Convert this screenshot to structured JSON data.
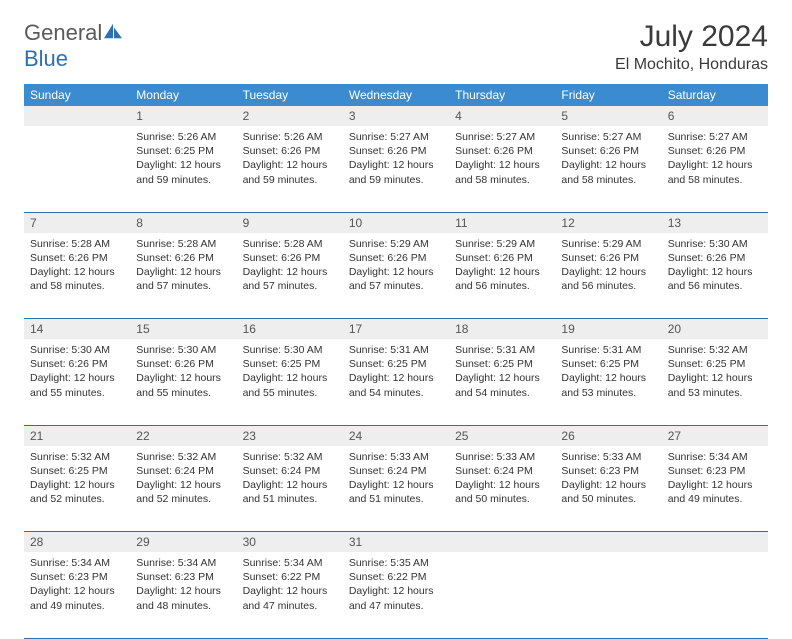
{
  "brand": {
    "part1": "General",
    "part2": "Blue"
  },
  "title": "July 2024",
  "location": "El Mochito, Honduras",
  "colors": {
    "header_bg": "#3b8bd0",
    "header_fg": "#ffffff",
    "daynum_bg": "#eeeeee",
    "rule": "#2f6fb0",
    "text": "#333333"
  },
  "weekdays": [
    "Sunday",
    "Monday",
    "Tuesday",
    "Wednesday",
    "Thursday",
    "Friday",
    "Saturday"
  ],
  "weeks": [
    [
      null,
      {
        "n": "1",
        "sr": "5:26 AM",
        "ss": "6:25 PM",
        "dl": "12 hours and 59 minutes."
      },
      {
        "n": "2",
        "sr": "5:26 AM",
        "ss": "6:26 PM",
        "dl": "12 hours and 59 minutes."
      },
      {
        "n": "3",
        "sr": "5:27 AM",
        "ss": "6:26 PM",
        "dl": "12 hours and 59 minutes."
      },
      {
        "n": "4",
        "sr": "5:27 AM",
        "ss": "6:26 PM",
        "dl": "12 hours and 58 minutes."
      },
      {
        "n": "5",
        "sr": "5:27 AM",
        "ss": "6:26 PM",
        "dl": "12 hours and 58 minutes."
      },
      {
        "n": "6",
        "sr": "5:27 AM",
        "ss": "6:26 PM",
        "dl": "12 hours and 58 minutes."
      }
    ],
    [
      {
        "n": "7",
        "sr": "5:28 AM",
        "ss": "6:26 PM",
        "dl": "12 hours and 58 minutes."
      },
      {
        "n": "8",
        "sr": "5:28 AM",
        "ss": "6:26 PM",
        "dl": "12 hours and 57 minutes."
      },
      {
        "n": "9",
        "sr": "5:28 AM",
        "ss": "6:26 PM",
        "dl": "12 hours and 57 minutes."
      },
      {
        "n": "10",
        "sr": "5:29 AM",
        "ss": "6:26 PM",
        "dl": "12 hours and 57 minutes."
      },
      {
        "n": "11",
        "sr": "5:29 AM",
        "ss": "6:26 PM",
        "dl": "12 hours and 56 minutes."
      },
      {
        "n": "12",
        "sr": "5:29 AM",
        "ss": "6:26 PM",
        "dl": "12 hours and 56 minutes."
      },
      {
        "n": "13",
        "sr": "5:30 AM",
        "ss": "6:26 PM",
        "dl": "12 hours and 56 minutes."
      }
    ],
    [
      {
        "n": "14",
        "sr": "5:30 AM",
        "ss": "6:26 PM",
        "dl": "12 hours and 55 minutes."
      },
      {
        "n": "15",
        "sr": "5:30 AM",
        "ss": "6:26 PM",
        "dl": "12 hours and 55 minutes."
      },
      {
        "n": "16",
        "sr": "5:30 AM",
        "ss": "6:25 PM",
        "dl": "12 hours and 55 minutes."
      },
      {
        "n": "17",
        "sr": "5:31 AM",
        "ss": "6:25 PM",
        "dl": "12 hours and 54 minutes."
      },
      {
        "n": "18",
        "sr": "5:31 AM",
        "ss": "6:25 PM",
        "dl": "12 hours and 54 minutes."
      },
      {
        "n": "19",
        "sr": "5:31 AM",
        "ss": "6:25 PM",
        "dl": "12 hours and 53 minutes."
      },
      {
        "n": "20",
        "sr": "5:32 AM",
        "ss": "6:25 PM",
        "dl": "12 hours and 53 minutes."
      }
    ],
    [
      {
        "n": "21",
        "sr": "5:32 AM",
        "ss": "6:25 PM",
        "dl": "12 hours and 52 minutes."
      },
      {
        "n": "22",
        "sr": "5:32 AM",
        "ss": "6:24 PM",
        "dl": "12 hours and 52 minutes."
      },
      {
        "n": "23",
        "sr": "5:32 AM",
        "ss": "6:24 PM",
        "dl": "12 hours and 51 minutes."
      },
      {
        "n": "24",
        "sr": "5:33 AM",
        "ss": "6:24 PM",
        "dl": "12 hours and 51 minutes."
      },
      {
        "n": "25",
        "sr": "5:33 AM",
        "ss": "6:24 PM",
        "dl": "12 hours and 50 minutes."
      },
      {
        "n": "26",
        "sr": "5:33 AM",
        "ss": "6:23 PM",
        "dl": "12 hours and 50 minutes."
      },
      {
        "n": "27",
        "sr": "5:34 AM",
        "ss": "6:23 PM",
        "dl": "12 hours and 49 minutes."
      }
    ],
    [
      {
        "n": "28",
        "sr": "5:34 AM",
        "ss": "6:23 PM",
        "dl": "12 hours and 49 minutes."
      },
      {
        "n": "29",
        "sr": "5:34 AM",
        "ss": "6:23 PM",
        "dl": "12 hours and 48 minutes."
      },
      {
        "n": "30",
        "sr": "5:34 AM",
        "ss": "6:22 PM",
        "dl": "12 hours and 47 minutes."
      },
      {
        "n": "31",
        "sr": "5:35 AM",
        "ss": "6:22 PM",
        "dl": "12 hours and 47 minutes."
      },
      null,
      null,
      null
    ]
  ],
  "labels": {
    "sunrise": "Sunrise:",
    "sunset": "Sunset:",
    "daylight": "Daylight:"
  }
}
